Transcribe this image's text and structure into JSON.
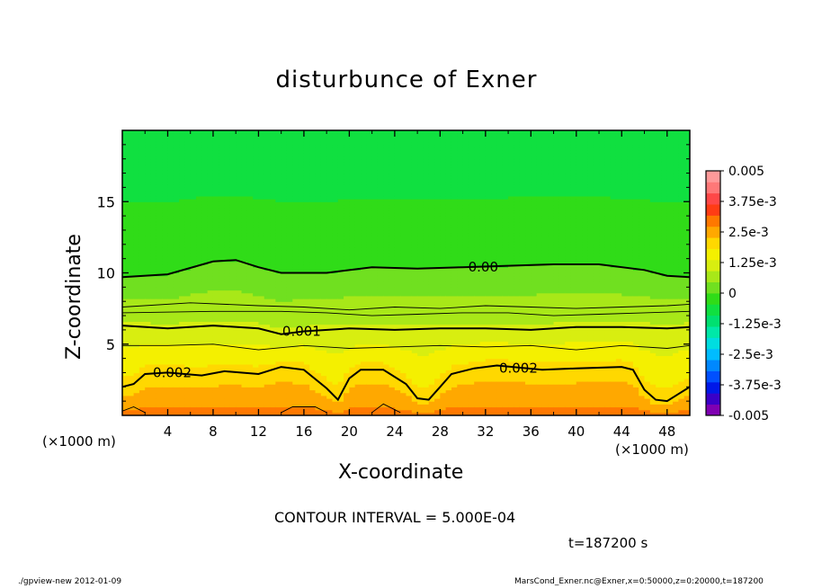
{
  "chart_data": {
    "type": "heatmap",
    "title": "disturbunce of Exner",
    "xlabel": "X-coordinate",
    "ylabel": "Z-coordinate",
    "x_unit": "(×1000 m)",
    "y_unit": "(×1000 m)",
    "xlim": [
      0,
      50
    ],
    "ylim": [
      0,
      20
    ],
    "x_ticks": [
      "4",
      "8",
      "12",
      "16",
      "20",
      "24",
      "28",
      "32",
      "36",
      "40",
      "44",
      "48"
    ],
    "x_tick_values": [
      4,
      8,
      12,
      16,
      20,
      24,
      28,
      32,
      36,
      40,
      44,
      48
    ],
    "y_ticks": [
      "5",
      "10",
      "15"
    ],
    "y_tick_values": [
      5,
      10,
      15
    ],
    "colorbar": {
      "range": [
        -0.005,
        0.005
      ],
      "labels": [
        "0.005",
        "3.75e-3",
        "2.5e-3",
        "1.25e-3",
        "0",
        "-1.25e-3",
        "-2.5e-3",
        "-3.75e-3",
        "-0.005"
      ],
      "label_values": [
        0.005,
        0.00375,
        0.0025,
        0.00125,
        0,
        -0.00125,
        -0.0025,
        -0.00375,
        -0.005
      ],
      "colors": [
        "#7f00b2",
        "#3a00c8",
        "#0018e8",
        "#0050ff",
        "#0088ff",
        "#00bcff",
        "#00dde0",
        "#00e8a8",
        "#00e070",
        "#10e040",
        "#30dc18",
        "#70e020",
        "#a8e818",
        "#d8ee10",
        "#f4f000",
        "#ffd800",
        "#ffa800",
        "#ff7800",
        "#ff3c14",
        "#ff4848",
        "#ff7878",
        "#ff9a9a"
      ]
    },
    "contour_labels": [
      {
        "text": "0.00",
        "x": 31.8,
        "z": 10.4
      },
      {
        "text": "0.001",
        "x": 15.8,
        "z": 5.9
      },
      {
        "text": "0.002",
        "x": 4.4,
        "z": 3.0
      },
      {
        "text": "0.002",
        "x": 34.9,
        "z": 3.3
      }
    ],
    "contour_lines": [
      {
        "value": 0.0,
        "points": [
          [
            0,
            9.7
          ],
          [
            4,
            9.9
          ],
          [
            8,
            10.8
          ],
          [
            10,
            10.9
          ],
          [
            12,
            10.4
          ],
          [
            14,
            10.0
          ],
          [
            18,
            10.0
          ],
          [
            22,
            10.4
          ],
          [
            26,
            10.3
          ],
          [
            30,
            10.4
          ],
          [
            34,
            10.5
          ],
          [
            38,
            10.6
          ],
          [
            42,
            10.6
          ],
          [
            46,
            10.2
          ],
          [
            48,
            9.8
          ],
          [
            50,
            9.7
          ]
        ]
      },
      {
        "value": 0.0005,
        "points": [
          [
            0,
            7.6
          ],
          [
            6,
            7.9
          ],
          [
            12,
            7.7
          ],
          [
            16,
            7.6
          ],
          [
            20,
            7.4
          ],
          [
            24,
            7.6
          ],
          [
            28,
            7.5
          ],
          [
            32,
            7.7
          ],
          [
            36,
            7.6
          ],
          [
            40,
            7.5
          ],
          [
            44,
            7.6
          ],
          [
            48,
            7.7
          ],
          [
            50,
            7.8
          ]
        ]
      },
      {
        "value": 0.0005,
        "points": [
          [
            0,
            7.2
          ],
          [
            8,
            7.3
          ],
          [
            14,
            7.3
          ],
          [
            18,
            7.2
          ],
          [
            22,
            7.0
          ],
          [
            26,
            7.1
          ],
          [
            30,
            7.2
          ],
          [
            34,
            7.2
          ],
          [
            38,
            7.0
          ],
          [
            42,
            7.1
          ],
          [
            46,
            7.2
          ],
          [
            50,
            7.3
          ]
        ]
      },
      {
        "value": 0.001,
        "points": [
          [
            0,
            6.3
          ],
          [
            4,
            6.1
          ],
          [
            8,
            6.3
          ],
          [
            12,
            6.1
          ],
          [
            14,
            5.7
          ],
          [
            16,
            5.9
          ],
          [
            20,
            6.1
          ],
          [
            24,
            6.0
          ],
          [
            28,
            6.1
          ],
          [
            32,
            6.1
          ],
          [
            36,
            6.0
          ],
          [
            40,
            6.2
          ],
          [
            44,
            6.2
          ],
          [
            48,
            6.1
          ],
          [
            50,
            6.2
          ]
        ]
      },
      {
        "value": 0.0015,
        "points": [
          [
            0,
            4.9
          ],
          [
            4,
            4.9
          ],
          [
            8,
            5.0
          ],
          [
            12,
            4.6
          ],
          [
            16,
            4.9
          ],
          [
            20,
            4.7
          ],
          [
            24,
            4.8
          ],
          [
            28,
            4.9
          ],
          [
            32,
            4.8
          ],
          [
            36,
            4.9
          ],
          [
            40,
            4.6
          ],
          [
            44,
            4.9
          ],
          [
            48,
            4.7
          ],
          [
            50,
            4.9
          ]
        ]
      },
      {
        "value": 0.002,
        "points": [
          [
            0,
            2.0
          ],
          [
            1,
            2.2
          ],
          [
            2,
            2.9
          ],
          [
            4,
            3.0
          ],
          [
            7,
            2.8
          ],
          [
            9,
            3.1
          ],
          [
            12,
            2.9
          ],
          [
            14,
            3.4
          ],
          [
            16,
            3.2
          ],
          [
            18,
            1.9
          ],
          [
            19,
            1.1
          ],
          [
            20,
            2.6
          ],
          [
            21,
            3.2
          ],
          [
            23,
            3.2
          ],
          [
            25,
            2.2
          ],
          [
            26,
            1.2
          ],
          [
            27,
            1.1
          ],
          [
            28,
            2.0
          ],
          [
            29,
            2.9
          ],
          [
            31,
            3.3
          ],
          [
            33,
            3.5
          ],
          [
            37,
            3.2
          ],
          [
            40,
            3.3
          ],
          [
            44,
            3.4
          ],
          [
            45,
            3.2
          ],
          [
            46,
            1.8
          ],
          [
            47,
            1.1
          ],
          [
            48,
            1.0
          ],
          [
            49,
            1.5
          ],
          [
            50,
            2.0
          ]
        ]
      },
      {
        "value": 0.0025,
        "points": [
          [
            14,
            0.2
          ],
          [
            15,
            0.6
          ],
          [
            17,
            0.6
          ],
          [
            18,
            0.2
          ]
        ]
      },
      {
        "value": 0.0025,
        "points": [
          [
            22,
            0.2
          ],
          [
            23,
            0.8
          ],
          [
            24,
            0.4
          ],
          [
            24.5,
            0.2
          ]
        ]
      },
      {
        "value": 0.0025,
        "points": [
          [
            0,
            0.3
          ],
          [
            1,
            0.6
          ],
          [
            2,
            0.2
          ]
        ]
      }
    ]
  },
  "annotations": {
    "contour_interval": "CONTOUR INTERVAL = 5.000E-04",
    "time": "t=187200 s",
    "footer_left": "./gpview-new   2012-01-09",
    "footer_right": "MarsCond_Exner.nc@Exner,x=0:50000,z=0:20000,t=187200"
  }
}
